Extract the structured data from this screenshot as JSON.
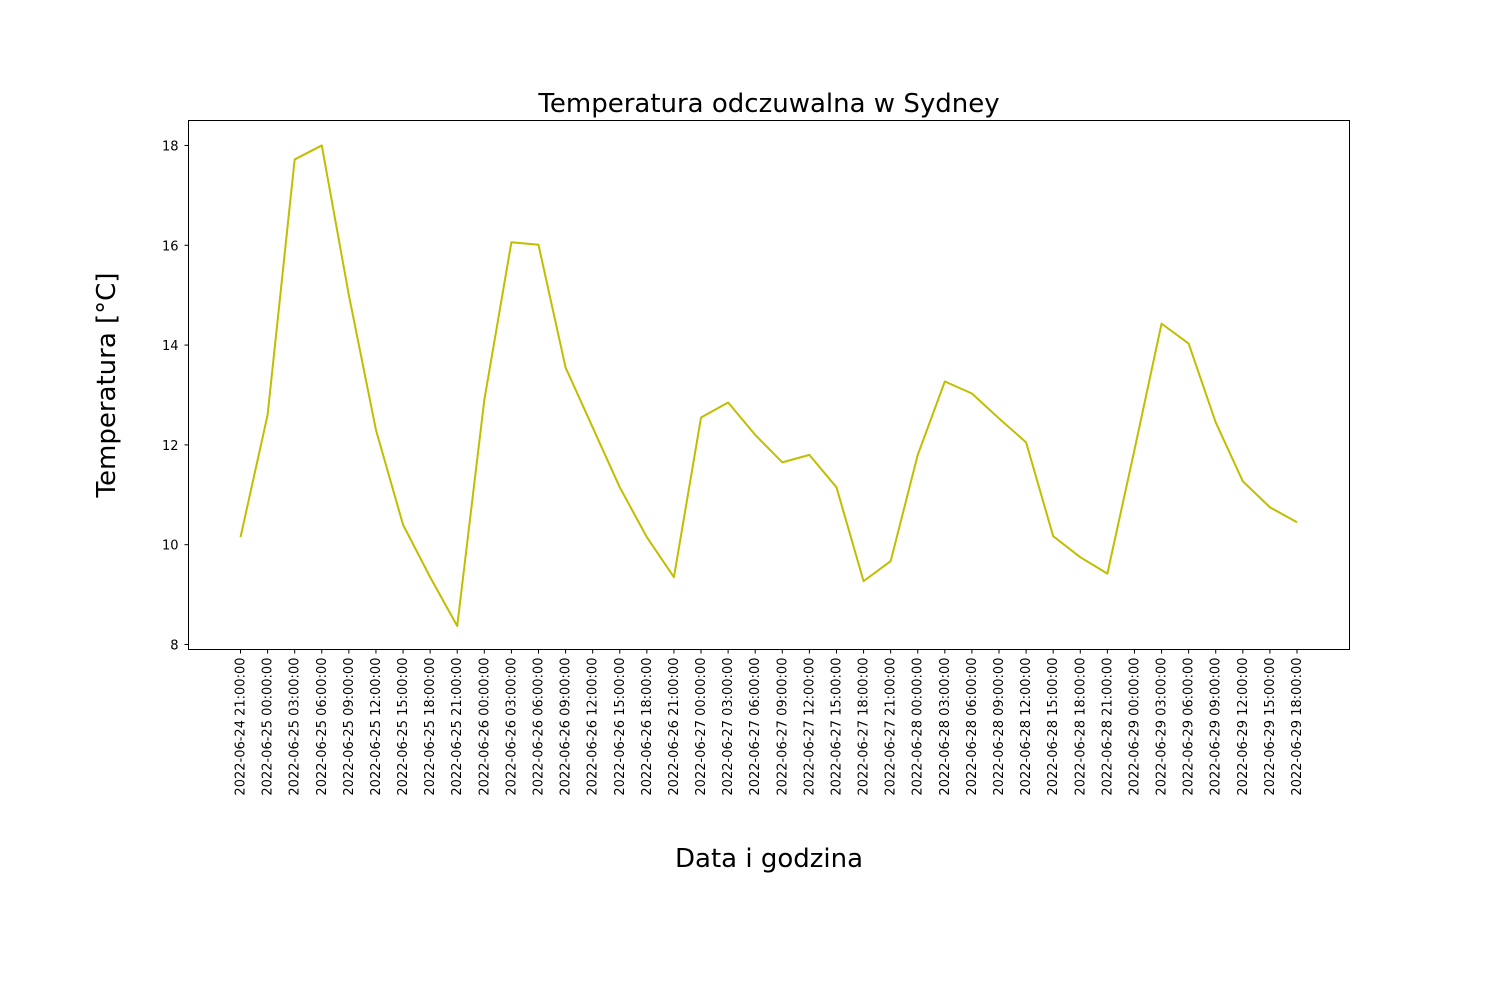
{
  "chart_data": {
    "type": "line",
    "title": "Temperatura odczuwalna w Sydney",
    "xlabel": "Data i godzina",
    "ylabel": "Temperatura [°C]",
    "ylim": [
      7.9,
      18.5
    ],
    "yticks": [
      8,
      10,
      12,
      14,
      16,
      18
    ],
    "grid": false,
    "x": [
      "2022-06-24 21:00:00",
      "2022-06-25 00:00:00",
      "2022-06-25 03:00:00",
      "2022-06-25 06:00:00",
      "2022-06-25 09:00:00",
      "2022-06-25 12:00:00",
      "2022-06-25 15:00:00",
      "2022-06-25 18:00:00",
      "2022-06-25 21:00:00",
      "2022-06-26 00:00:00",
      "2022-06-26 03:00:00",
      "2022-06-26 06:00:00",
      "2022-06-26 09:00:00",
      "2022-06-26 12:00:00",
      "2022-06-26 15:00:00",
      "2022-06-26 18:00:00",
      "2022-06-26 21:00:00",
      "2022-06-27 00:00:00",
      "2022-06-27 03:00:00",
      "2022-06-27 06:00:00",
      "2022-06-27 09:00:00",
      "2022-06-27 12:00:00",
      "2022-06-27 15:00:00",
      "2022-06-27 18:00:00",
      "2022-06-27 21:00:00",
      "2022-06-28 00:00:00",
      "2022-06-28 03:00:00",
      "2022-06-28 06:00:00",
      "2022-06-28 09:00:00",
      "2022-06-28 12:00:00",
      "2022-06-28 15:00:00",
      "2022-06-28 18:00:00",
      "2022-06-28 21:00:00",
      "2022-06-29 00:00:00",
      "2022-06-29 03:00:00",
      "2022-06-29 06:00:00",
      "2022-06-29 09:00:00",
      "2022-06-29 12:00:00",
      "2022-06-29 15:00:00",
      "2022-06-29 18:00:00"
    ],
    "series": [
      {
        "values": [
          10.15,
          12.6,
          17.72,
          18.0,
          15.0,
          12.3,
          10.4,
          9.35,
          8.37,
          12.9,
          16.06,
          16.01,
          13.55,
          12.35,
          11.15,
          10.15,
          9.35,
          12.55,
          12.85,
          12.2,
          11.65,
          11.8,
          11.15,
          9.27,
          9.67,
          11.8,
          13.27,
          13.03,
          12.53,
          12.05,
          10.17,
          9.75,
          9.42,
          11.9,
          14.43,
          14.03,
          12.45,
          11.27,
          10.75,
          10.45
        ],
        "color": "#bfbf00"
      }
    ]
  }
}
